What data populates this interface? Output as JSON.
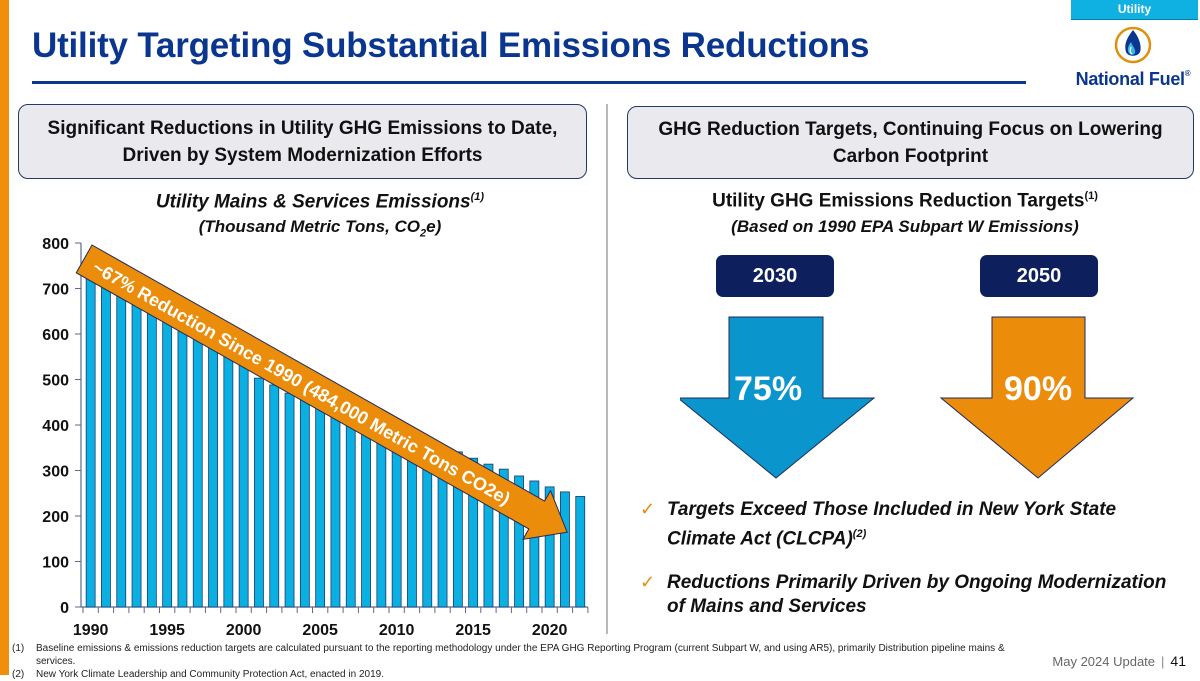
{
  "section_tag": "Utility",
  "title": "Utility Targeting Substantial Emissions Reductions",
  "logo": {
    "name": "National Fuel",
    "reg": "®"
  },
  "colors": {
    "accent_orange": "#f0900a",
    "brand_blue": "#0a3690",
    "bar_blue": "#0bb0e2",
    "dark_navy": "#0d1f5c",
    "arrow_blue": "#0a95cc",
    "arrow_orange": "#ec8c0b"
  },
  "left_panel": {
    "header_line1": "Significant Reductions in Utility GHG Emissions to Date,",
    "header_line2": "Driven by System Modernization Efforts",
    "chart_title": "Utility Mains & Services Emissions",
    "chart_title_sup": "(1)",
    "chart_subtitle_pre": "(Thousand Metric Tons, CO",
    "chart_subtitle_sub": "2",
    "chart_subtitle_post": "e)",
    "annotation": "~67% Reduction Since 1990 (484,000 Metric Tons CO2e)"
  },
  "right_panel": {
    "header_line1": "GHG Reduction Targets, Continuing Focus on Lowering",
    "header_line2": "Carbon Footprint",
    "title": "Utility GHG Emissions Reduction Targets",
    "title_sup": "(1)",
    "subtitle": "(Based on 1990 EPA Subpart W Emissions)",
    "targets": [
      {
        "year": "2030",
        "reduction": "75%"
      },
      {
        "year": "2050",
        "reduction": "90%"
      }
    ],
    "bullets": [
      {
        "text": "Targets Exceed Those Included in New York State Climate Act (CLCPA)",
        "sup": "(2)"
      },
      {
        "text": "Reductions Primarily Driven by Ongoing Modernization of Mains and Services",
        "sup": ""
      }
    ],
    "check_icon": "✓"
  },
  "footnotes": [
    {
      "num": "(1)",
      "text": "Baseline emissions & emissions reduction targets are calculated pursuant to the reporting methodology under the EPA GHG Reporting Program (current Subpart W, and using AR5), primarily Distribution pipeline mains & services."
    },
    {
      "num": "(2)",
      "text": "New York Climate Leadership and Community Protection Act, enacted in 2019."
    }
  ],
  "footer": {
    "label": "May 2024 Update",
    "separator": "|",
    "page": "41"
  },
  "chart_data": {
    "type": "bar",
    "title": "Utility Mains & Services Emissions",
    "subtitle": "(Thousand Metric Tons, CO2e)",
    "xlabel": "",
    "ylabel": "",
    "ylim": [
      0,
      800
    ],
    "yticks": [
      0,
      100,
      200,
      300,
      400,
      500,
      600,
      700,
      800
    ],
    "xtick_labels": [
      "1990",
      "1995",
      "2000",
      "2005",
      "2010",
      "2015",
      "2020"
    ],
    "grid": false,
    "categories": [
      "1990",
      "1991",
      "1992",
      "1993",
      "1994",
      "1995",
      "1996",
      "1997",
      "1998",
      "1999",
      "2000",
      "2001",
      "2002",
      "2003",
      "2004",
      "2005",
      "2006",
      "2007",
      "2008",
      "2009",
      "2010",
      "2011",
      "2012",
      "2013",
      "2014",
      "2015",
      "2016",
      "2017",
      "2018",
      "2019",
      "2020",
      "2021",
      "2022"
    ],
    "values": [
      727,
      705,
      686,
      670,
      651,
      635,
      620,
      600,
      574,
      556,
      538,
      503,
      488,
      470,
      457,
      444,
      431,
      420,
      407,
      394,
      380,
      367,
      365,
      354,
      341,
      327,
      314,
      303,
      288,
      277,
      264,
      253,
      243
    ],
    "annotation": "~67% Reduction Since 1990 (484,000 Metric Tons CO2e)"
  }
}
